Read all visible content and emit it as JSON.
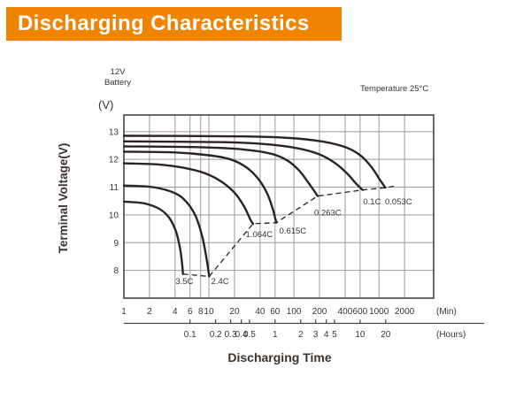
{
  "header": {
    "title": "Discharging Characteristics"
  },
  "annotations": {
    "battery_line1": "12V",
    "battery_line2": "Battery",
    "temperature": "Temperature 25°C",
    "voltage_unit": "(V)",
    "y_axis_title": "Terminal Voltage(V)",
    "x_axis_title": "Discharging Time",
    "min_unit": "(Min)",
    "hours_unit": "(Hours)"
  },
  "colors": {
    "header_bg": "#F08300",
    "header_text": "#FFFFFF",
    "curve": "#2B2422",
    "grid": "#9B9B9B",
    "axis": "#4A4440",
    "text": "#3B3330"
  },
  "chart_data": {
    "type": "line",
    "title": "Discharging Characteristics",
    "xlabel": "Discharging Time",
    "ylabel": "Terminal Voltage(V)",
    "x_scale": "log",
    "xlim": [
      1,
      4400
    ],
    "ylim": [
      7.0,
      13.6
    ],
    "grid": true,
    "x_ticks_min": [
      1,
      2,
      4,
      6,
      8,
      10,
      20,
      40,
      60,
      100,
      200,
      400,
      600,
      1000,
      2000
    ],
    "x_ticks_hours": [
      0.1,
      0.2,
      0.3,
      0.4,
      0.5,
      1,
      2,
      3,
      4,
      5,
      10,
      20
    ],
    "y_ticks": [
      8,
      9,
      10,
      11,
      12,
      13
    ],
    "series": [
      {
        "name": "0.053C",
        "points": [
          [
            1,
            12.85
          ],
          [
            25,
            12.83
          ],
          [
            90,
            12.77
          ],
          [
            220,
            12.64
          ],
          [
            420,
            12.42
          ],
          [
            620,
            12.12
          ],
          [
            820,
            11.72
          ],
          [
            1020,
            11.28
          ],
          [
            1190,
            10.98
          ]
        ],
        "label_at": [
          1700,
          10.48
        ]
      },
      {
        "name": "0.1C",
        "points": [
          [
            1,
            12.65
          ],
          [
            15,
            12.62
          ],
          [
            50,
            12.54
          ],
          [
            110,
            12.4
          ],
          [
            200,
            12.18
          ],
          [
            300,
            11.88
          ],
          [
            420,
            11.5
          ],
          [
            520,
            11.18
          ],
          [
            610,
            10.96
          ],
          [
            645,
            10.9
          ]
        ],
        "label_at": [
          830,
          10.48
        ]
      },
      {
        "name": "0.263C",
        "points": [
          [
            1,
            12.47
          ],
          [
            8,
            12.44
          ],
          [
            25,
            12.36
          ],
          [
            55,
            12.2
          ],
          [
            85,
            11.95
          ],
          [
            115,
            11.6
          ],
          [
            145,
            11.2
          ],
          [
            170,
            10.9
          ],
          [
            190,
            10.68
          ]
        ],
        "label_at": [
          250,
          10.08
        ]
      },
      {
        "name": "0.615C",
        "points": [
          [
            1,
            12.28
          ],
          [
            4,
            12.25
          ],
          [
            10,
            12.15
          ],
          [
            18,
            12.0
          ],
          [
            28,
            11.7
          ],
          [
            38,
            11.3
          ],
          [
            48,
            10.8
          ],
          [
            56,
            10.25
          ],
          [
            60.5,
            9.85
          ],
          [
            62,
            9.72
          ]
        ],
        "label_at": [
          97,
          9.42
        ]
      },
      {
        "name": "1.064C",
        "points": [
          [
            1,
            11.86
          ],
          [
            2.5,
            11.82
          ],
          [
            5,
            11.7
          ],
          [
            9,
            11.5
          ],
          [
            14,
            11.2
          ],
          [
            20,
            10.8
          ],
          [
            26,
            10.3
          ],
          [
            30.5,
            9.85
          ],
          [
            33,
            9.68
          ]
        ],
        "label_at": [
          39,
          9.3
        ]
      },
      {
        "name": "2.4C",
        "points": [
          [
            1,
            11.06
          ],
          [
            2.2,
            11.0
          ],
          [
            4,
            10.78
          ],
          [
            5.5,
            10.45
          ],
          [
            7,
            9.95
          ],
          [
            8.3,
            9.25
          ],
          [
            9.3,
            8.5
          ],
          [
            9.9,
            7.95
          ],
          [
            10.05,
            7.78
          ]
        ],
        "label_at": [
          13.5,
          7.6
        ]
      },
      {
        "name": "3.5C",
        "points": [
          [
            1,
            10.48
          ],
          [
            1.7,
            10.42
          ],
          [
            2.6,
            10.22
          ],
          [
            3.4,
            9.9
          ],
          [
            4.1,
            9.4
          ],
          [
            4.6,
            8.75
          ],
          [
            4.85,
            8.2
          ],
          [
            4.95,
            7.87
          ]
        ],
        "label_at": [
          5.15,
          7.6
        ]
      }
    ],
    "cutoff_line": {
      "style": "dashed",
      "points": [
        [
          4.95,
          7.87
        ],
        [
          10.05,
          7.78
        ],
        [
          33,
          9.68
        ],
        [
          62,
          9.72
        ],
        [
          190,
          10.68
        ],
        [
          645,
          10.9
        ],
        [
          1190,
          10.98
        ],
        [
          1560,
          11.04
        ]
      ]
    }
  }
}
